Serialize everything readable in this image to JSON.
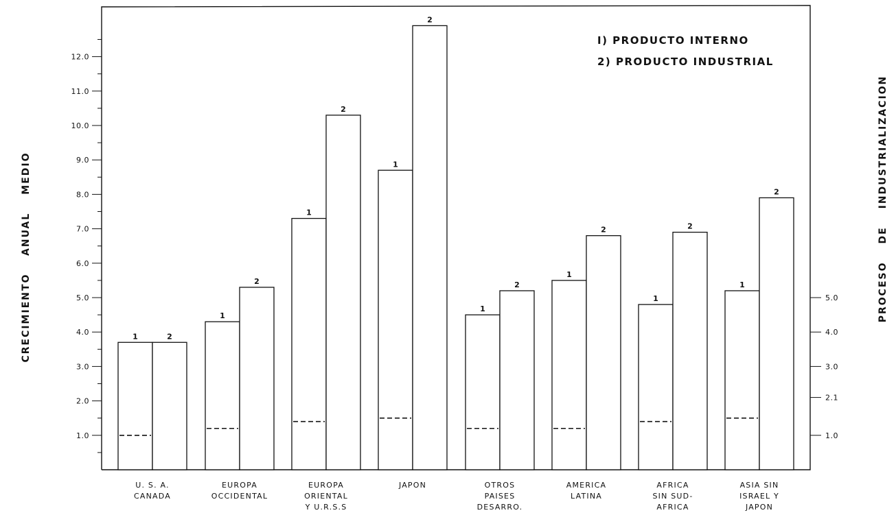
{
  "chart_data": {
    "type": "bar",
    "ylabel_words": [
      "CRECIMIENTO",
      "ANUAL",
      "MEDIO"
    ],
    "y2label_words": [
      "PROCESO",
      "DE",
      "INDUSTRIALIZACION"
    ],
    "legend": [
      "I) PRODUCTO INTERNO",
      "2) PRODUCTO INDUSTRIAL"
    ],
    "ylim": [
      0,
      13
    ],
    "yticks": [
      {
        "value": 1.0,
        "label": "1.0"
      },
      {
        "value": 2.0,
        "label": "2.0"
      },
      {
        "value": 3.0,
        "label": "3.0"
      },
      {
        "value": 4.0,
        "label": "4.0"
      },
      {
        "value": 5.0,
        "label": "5.0"
      },
      {
        "value": 6.0,
        "label": "6.0"
      },
      {
        "value": 7.0,
        "label": "7.0"
      },
      {
        "value": 8.0,
        "label": "8.0"
      },
      {
        "value": 9.0,
        "label": "9.0"
      },
      {
        "value": 10.0,
        "label": "10.0"
      },
      {
        "value": 11.0,
        "label": "11.0"
      },
      {
        "value": 12.0,
        "label": "12.0"
      }
    ],
    "y2ticks": [
      {
        "value": 1.0,
        "label": "1.0"
      },
      {
        "value": 2.1,
        "label": "2.1"
      },
      {
        "value": 3.0,
        "label": "3.0"
      },
      {
        "value": 4.0,
        "label": "4.0"
      },
      {
        "value": 5.0,
        "label": "5.0"
      }
    ],
    "categories": [
      [
        "U. S. A.",
        "CANADA"
      ],
      [
        "EUROPA",
        "OCCIDENTAL"
      ],
      [
        "EUROPA",
        "ORIENTAL",
        "Y U.R.S.S"
      ],
      [
        "JAPON"
      ],
      [
        "OTROS",
        "PAISES",
        "DESARRO."
      ],
      [
        "AMERICA",
        "LATINA"
      ],
      [
        "AFRICA",
        "SIN SUD-",
        "AFRICA"
      ],
      [
        "ASIA SIN",
        "ISRAEL Y",
        "JAPON"
      ]
    ],
    "series": [
      {
        "label": "1",
        "values": [
          3.7,
          4.3,
          7.3,
          8.7,
          4.5,
          5.5,
          4.8,
          5.2
        ]
      },
      {
        "label": "2",
        "values": [
          3.7,
          5.3,
          10.3,
          12.9,
          5.2,
          6.8,
          6.9,
          7.9
        ]
      }
    ],
    "industrialization": [
      1.0,
      1.2,
      1.4,
      1.5,
      1.2,
      1.2,
      1.4,
      1.5
    ],
    "grid": false,
    "legend_position": "top-right"
  }
}
